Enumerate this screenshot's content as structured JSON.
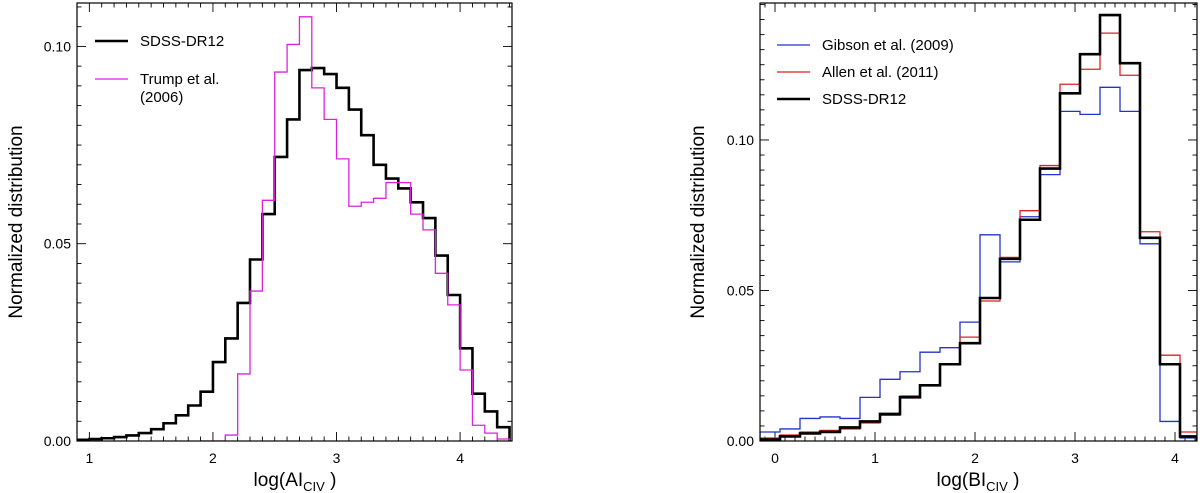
{
  "chart_data": [
    {
      "type": "histogram",
      "xlabel_main": "log(AI",
      "xlabel_sub": "CIV",
      "xlabel_close": " )",
      "ylabel": "Normalized distribution",
      "xlim": [
        0.9,
        4.42
      ],
      "ylim": [
        0,
        0.111
      ],
      "xticks": [
        1,
        2,
        3,
        4
      ],
      "xtick_labels": [
        "1",
        "2",
        "3",
        "4"
      ],
      "yticks": [
        0,
        0.05,
        0.1
      ],
      "ytick_labels": [
        "0.00",
        "0.05",
        "0.10"
      ],
      "legend_position": "top-left",
      "series": [
        {
          "name": "SDSS-DR12",
          "legend_lines": [
            "SDSS-DR12"
          ],
          "color": "#000000",
          "edges": [
            0.9,
            1.0,
            1.1,
            1.2,
            1.3,
            1.4,
            1.5,
            1.6,
            1.7,
            1.8,
            1.9,
            2.0,
            2.1,
            2.2,
            2.3,
            2.4,
            2.5,
            2.6,
            2.7,
            2.8,
            2.9,
            3.0,
            3.1,
            3.2,
            3.3,
            3.4,
            3.5,
            3.6,
            3.7,
            3.8,
            3.9,
            4.0,
            4.1,
            4.2,
            4.3,
            4.4
          ],
          "values": [
            0.0003,
            0.0005,
            0.0007,
            0.001,
            0.0014,
            0.002,
            0.003,
            0.0045,
            0.0065,
            0.009,
            0.0125,
            0.02,
            0.026,
            0.035,
            0.046,
            0.0575,
            0.072,
            0.0815,
            0.094,
            0.0945,
            0.093,
            0.0895,
            0.084,
            0.0775,
            0.07,
            0.0665,
            0.064,
            0.0605,
            0.0565,
            0.047,
            0.037,
            0.0235,
            0.012,
            0.0075,
            0.0035
          ]
        },
        {
          "name": "Trump et al. (2006)",
          "legend_lines": [
            "Trump et al.",
            "(2006)"
          ],
          "color": "#dd22dd",
          "edges": [
            1.9,
            2.0,
            2.1,
            2.2,
            2.3,
            2.4,
            2.5,
            2.6,
            2.7,
            2.8,
            2.9,
            3.0,
            3.1,
            3.2,
            3.3,
            3.4,
            3.5,
            3.6,
            3.7,
            3.8,
            3.9,
            4.0,
            4.1,
            4.2,
            4.3,
            4.4
          ],
          "values": [
            0,
            0,
            0.0015,
            0.017,
            0.038,
            0.061,
            0.0935,
            0.1005,
            0.1075,
            0.0895,
            0.0815,
            0.0715,
            0.0595,
            0.0605,
            0.0615,
            0.0655,
            0.0655,
            0.0575,
            0.0535,
            0.0425,
            0.0345,
            0.018,
            0.004,
            0.002,
            0.0005
          ]
        }
      ]
    },
    {
      "type": "histogram",
      "xlabel_main": "log(BI",
      "xlabel_sub": "CIV",
      "xlabel_close": " )",
      "ylabel": "Normalized distribution",
      "xlim": [
        -0.15,
        4.22
      ],
      "ylim": [
        0,
        0.1455
      ],
      "xticks": [
        0,
        1,
        2,
        3,
        4
      ],
      "xtick_labels": [
        "0",
        "1",
        "2",
        "3",
        "4"
      ],
      "yticks": [
        0,
        0.05,
        0.1
      ],
      "ytick_labels": [
        "0.00",
        "0.05",
        "0.10"
      ],
      "legend_position": "top-left",
      "series": [
        {
          "name": "Gibson et al. (2009)",
          "legend_lines": [
            "Gibson et al. (2009)"
          ],
          "color": "#2233cc",
          "edges": [
            -0.15,
            0.05,
            0.25,
            0.45,
            0.65,
            0.85,
            1.05,
            1.25,
            1.45,
            1.65,
            1.85,
            2.05,
            2.25,
            2.45,
            2.65,
            2.85,
            3.05,
            3.25,
            3.45,
            3.65,
            3.85,
            4.05,
            4.22
          ],
          "values": [
            0.003,
            0.004,
            0.0075,
            0.008,
            0.0075,
            0.0145,
            0.0205,
            0.023,
            0.0295,
            0.031,
            0.0395,
            0.0685,
            0.0595,
            0.0745,
            0.0885,
            0.1095,
            0.1085,
            0.1175,
            0.1095,
            0.0655,
            0.0065,
            0.001
          ]
        },
        {
          "name": "Allen et al. (2011)",
          "legend_lines": [
            "Allen et al. (2011)"
          ],
          "color": "#dd2222",
          "edges": [
            -0.15,
            0.05,
            0.25,
            0.45,
            0.65,
            0.85,
            1.05,
            1.25,
            1.45,
            1.65,
            1.85,
            2.05,
            2.25,
            2.45,
            2.65,
            2.85,
            3.05,
            3.25,
            3.45,
            3.65,
            3.85,
            4.05,
            4.22
          ],
          "values": [
            0.001,
            0.002,
            0.003,
            0.0035,
            0.004,
            0.006,
            0.0085,
            0.015,
            0.0185,
            0.0255,
            0.0345,
            0.0465,
            0.061,
            0.0765,
            0.0915,
            0.1185,
            0.1235,
            0.1355,
            0.1215,
            0.0695,
            0.0285,
            0.003
          ]
        },
        {
          "name": "SDSS-DR12",
          "legend_lines": [
            "SDSS-DR12"
          ],
          "color": "#000000",
          "edges": [
            -0.15,
            0.05,
            0.25,
            0.45,
            0.65,
            0.85,
            1.05,
            1.25,
            1.45,
            1.65,
            1.85,
            2.05,
            2.25,
            2.45,
            2.65,
            2.85,
            3.05,
            3.25,
            3.45,
            3.65,
            3.85,
            4.05,
            4.22
          ],
          "values": [
            0.0005,
            0.0015,
            0.0025,
            0.003,
            0.0045,
            0.0065,
            0.009,
            0.0145,
            0.0185,
            0.0255,
            0.0325,
            0.0475,
            0.0605,
            0.0735,
            0.0905,
            0.1155,
            0.1285,
            0.1415,
            0.1255,
            0.0675,
            0.0255,
            0.0015
          ]
        }
      ]
    }
  ]
}
